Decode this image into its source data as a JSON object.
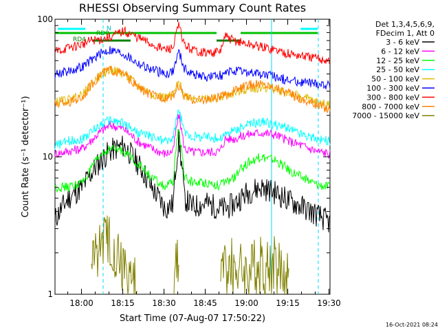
{
  "chart_data": {
    "type": "line",
    "title": "RHESSI Observing Summary Count Rates",
    "xlabel": "Start Time (07-Aug-07 17:50:22)",
    "ylabel": "Count Rate (s⁻¹ detector⁻¹)",
    "y_scale": "log",
    "ylim": [
      1,
      100
    ],
    "xlim_minutes_after_1750": [
      0,
      100
    ],
    "x_ticks": [
      "18:00",
      "18:15",
      "18:30",
      "18:45",
      "19:00",
      "19:15",
      "19:30"
    ],
    "y_ticks": [
      "1",
      "10",
      "100"
    ],
    "legend_header": [
      "Det 1,3,4,5,6,9,",
      "FDecim 1, Att 0"
    ],
    "footer_timestamp": "16-Oct-2021 08:24",
    "flag_labels": [
      "N",
      "RD0",
      "RD4"
    ],
    "x_minutes": [
      0,
      5,
      10,
      13,
      17,
      20,
      25,
      30,
      35,
      40,
      43,
      45,
      47,
      50,
      55,
      60,
      62,
      65,
      70,
      75,
      80,
      85,
      90,
      95,
      100
    ],
    "series": [
      {
        "name": "3 - 6 keV",
        "color": "#000000",
        "values": [
          3.5,
          5,
          6,
          7.5,
          9.5,
          11,
          12,
          9,
          6,
          4.2,
          4.5,
          13,
          5,
          4.3,
          4.6,
          4.2,
          4.2,
          4.5,
          5.5,
          6,
          5.5,
          4.8,
          4.3,
          3.8,
          3.3
        ]
      },
      {
        "name": "6 - 12 keV",
        "color": "#ff00ff",
        "values": [
          10.5,
          11,
          11.5,
          13,
          15.5,
          17,
          16,
          13,
          11.5,
          10.5,
          11,
          20,
          11.5,
          10.8,
          10.8,
          11,
          13.5,
          13.5,
          14.5,
          15,
          14.5,
          13,
          12,
          11,
          10.5
        ]
      },
      {
        "name": "12 - 25 keV",
        "color": "#00ff00",
        "values": [
          6,
          6,
          6.5,
          8,
          10.5,
          11.5,
          11,
          9,
          7,
          6,
          6.5,
          16,
          7,
          6.5,
          6.5,
          6.2,
          6.5,
          7,
          9,
          10,
          9.5,
          8,
          7,
          6.3,
          6
        ]
      },
      {
        "name": "25 - 50 keV",
        "color": "#00ffff",
        "values": [
          12,
          13,
          13.5,
          15,
          17.5,
          18.5,
          17.5,
          15,
          14,
          13,
          13.5,
          22,
          15,
          14,
          14,
          13.5,
          14.5,
          15.5,
          17,
          18,
          17,
          16,
          14.5,
          13.5,
          13
        ]
      },
      {
        "name": "50 - 100 keV",
        "color": "#e0b800",
        "values": [
          25,
          26,
          28,
          33,
          40,
          43,
          40,
          33,
          29,
          27,
          28,
          35,
          28,
          27,
          26,
          27,
          28,
          29,
          31,
          32,
          31,
          29,
          27,
          25,
          24
        ]
      },
      {
        "name": "100 - 300 keV",
        "color": "#0000ff",
        "values": [
          40,
          42,
          45,
          50,
          57,
          60,
          56,
          48,
          43,
          40,
          42,
          58,
          44,
          40,
          38,
          39,
          40,
          42,
          41,
          40,
          38,
          36,
          35,
          34,
          33
        ]
      },
      {
        "name": "300 - 800 keV",
        "color": "#ff0000",
        "values": [
          58,
          62,
          66,
          70,
          72,
          74,
          82,
          74,
          66,
          60,
          62,
          90,
          65,
          60,
          57,
          58,
          75,
          70,
          66,
          63,
          60,
          56,
          54,
          52,
          50
        ]
      },
      {
        "name": "800 - 7000 keV",
        "color": "#ff8000",
        "values": [
          24,
          25,
          27,
          33,
          40,
          43,
          40,
          32,
          28,
          27,
          28,
          33,
          27,
          26,
          26,
          27,
          28,
          30,
          33,
          34,
          32,
          29,
          26,
          24,
          22
        ]
      },
      {
        "name": "7000 - 15000 keV",
        "color": "#808000",
        "values": [
          null,
          null,
          null,
          1.7,
          2.5,
          2.5,
          1.6,
          1.1,
          null,
          null,
          1.6,
          1.5,
          null,
          null,
          null,
          1.6,
          1.6,
          1.6,
          1.5,
          1.6,
          1.6,
          1.4,
          null,
          null,
          null
        ]
      }
    ]
  }
}
